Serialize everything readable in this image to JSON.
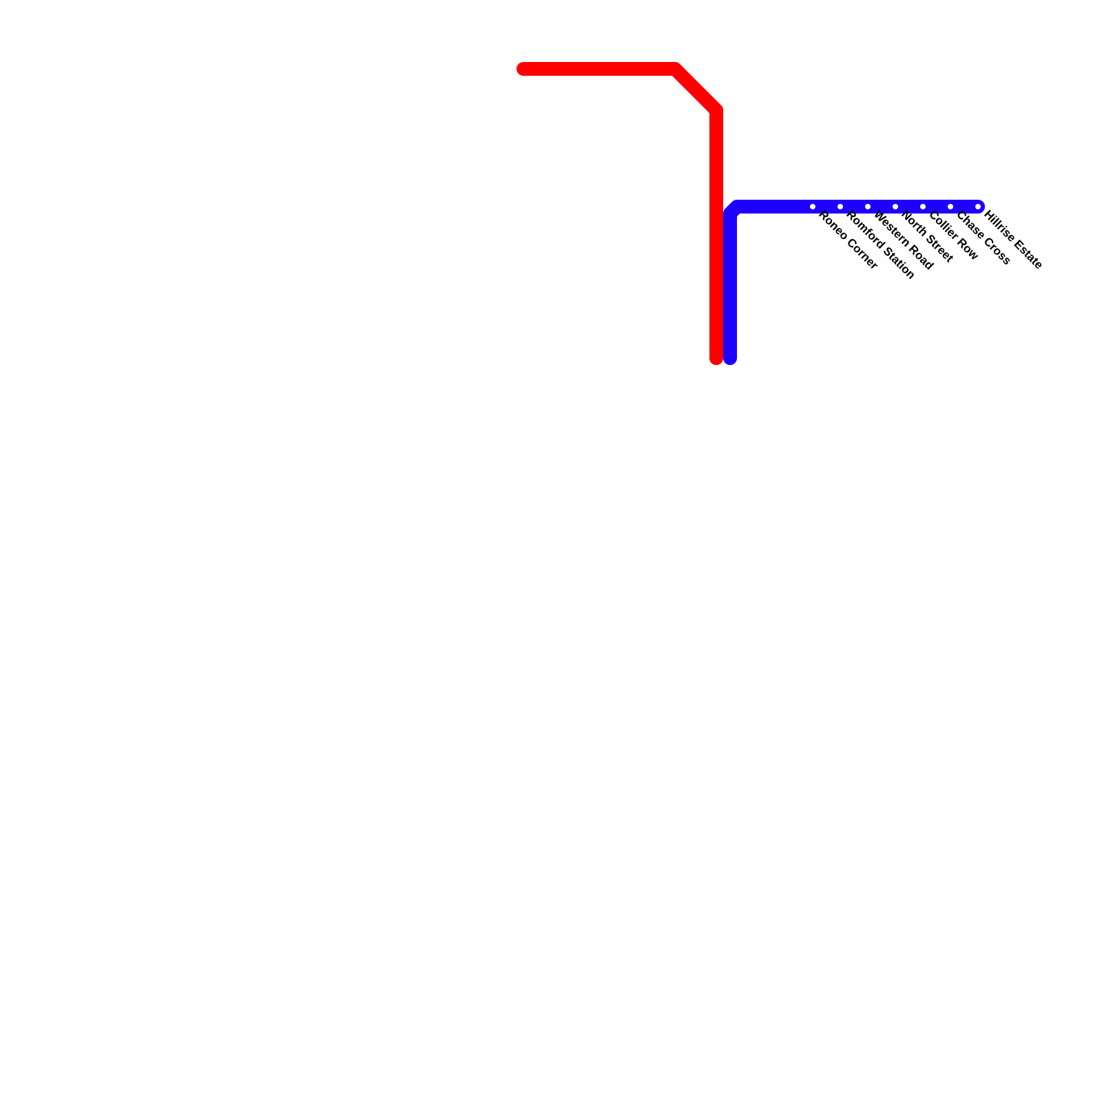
{
  "lines": [
    {
      "name": "red-line",
      "color": "#ff0000"
    },
    {
      "name": "blue-line",
      "color": "#1e00ff"
    }
  ],
  "stations": [
    {
      "name": "Roneo Corner"
    },
    {
      "name": "Romford Station"
    },
    {
      "name": "Western Road"
    },
    {
      "name": "North Street"
    },
    {
      "name": "Collier Row"
    },
    {
      "name": "Chase Cross"
    },
    {
      "name": "Hillrise Estate"
    }
  ]
}
